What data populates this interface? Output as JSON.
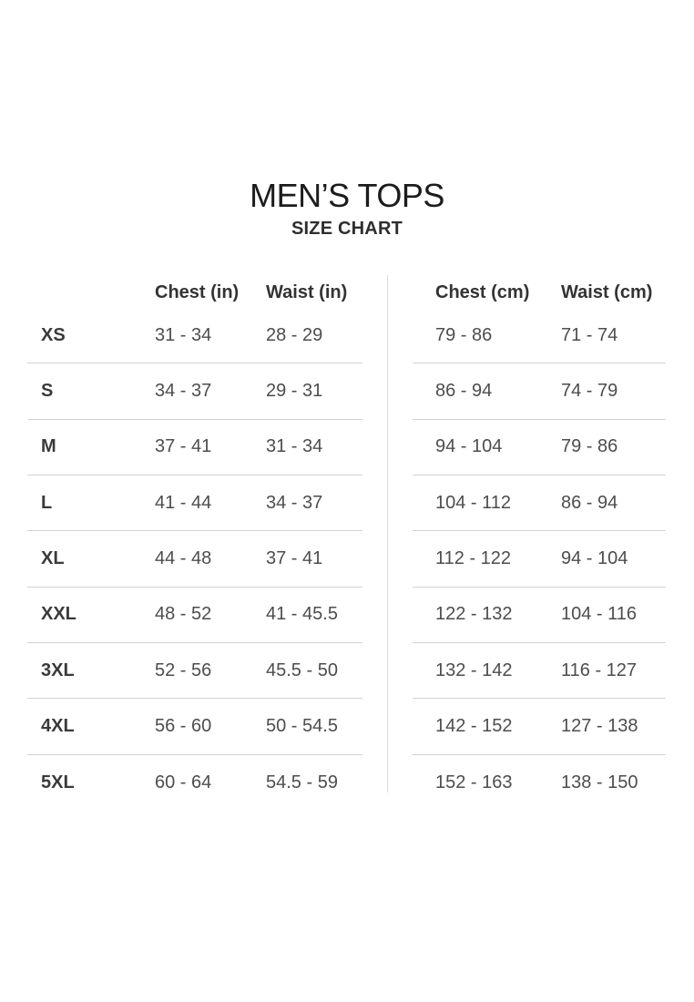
{
  "header": {
    "title": "MEN’S TOPS",
    "subtitle": "SIZE CHART"
  },
  "chart_data": {
    "type": "table",
    "title": "MEN’S TOPS",
    "subtitle": "SIZE CHART",
    "sizes": [
      "XS",
      "S",
      "M",
      "L",
      "XL",
      "XXL",
      "3XL",
      "4XL",
      "5XL"
    ],
    "tables": [
      {
        "id": "inches",
        "columns": [
          "Chest (in)",
          "Waist (in)"
        ],
        "show_size_column": true,
        "rows": [
          [
            "31 - 34",
            "28 - 29"
          ],
          [
            "34 - 37",
            "29 - 31"
          ],
          [
            "37 - 41",
            "31 - 34"
          ],
          [
            "41 - 44",
            "34 - 37"
          ],
          [
            "44 - 48",
            "37 - 41"
          ],
          [
            "48 - 52",
            "41 - 45.5"
          ],
          [
            "52 - 56",
            "45.5 - 50"
          ],
          [
            "56 - 60",
            "50 - 54.5"
          ],
          [
            "60 - 64",
            "54.5 - 59"
          ]
        ]
      },
      {
        "id": "cm",
        "columns": [
          "Chest (cm)",
          "Waist (cm)"
        ],
        "show_size_column": false,
        "rows": [
          [
            "79 - 86",
            "71 - 74"
          ],
          [
            "86 - 94",
            "74 - 79"
          ],
          [
            "94 - 104",
            "79 - 86"
          ],
          [
            "104 - 112",
            "86 - 94"
          ],
          [
            "112 - 122",
            "94 - 104"
          ],
          [
            "122 - 132",
            "104 - 116"
          ],
          [
            "132 - 142",
            "116 - 127"
          ],
          [
            "142 - 152",
            "127 - 138"
          ],
          [
            "152 - 163",
            "138 - 150"
          ]
        ]
      }
    ],
    "layout": {
      "grid": "horizontal separators between rows, vertical rule between inch and cm tables, no outer border"
    }
  },
  "colors": {
    "background": "#ffffff",
    "title_text": "#1c1c1c",
    "header_text": "#333333",
    "size_text": "#3a3a3a",
    "value_text": "#4d4d4d",
    "separator_line": "#d2d2d2",
    "vertical_divider": "#dcdcdc"
  }
}
